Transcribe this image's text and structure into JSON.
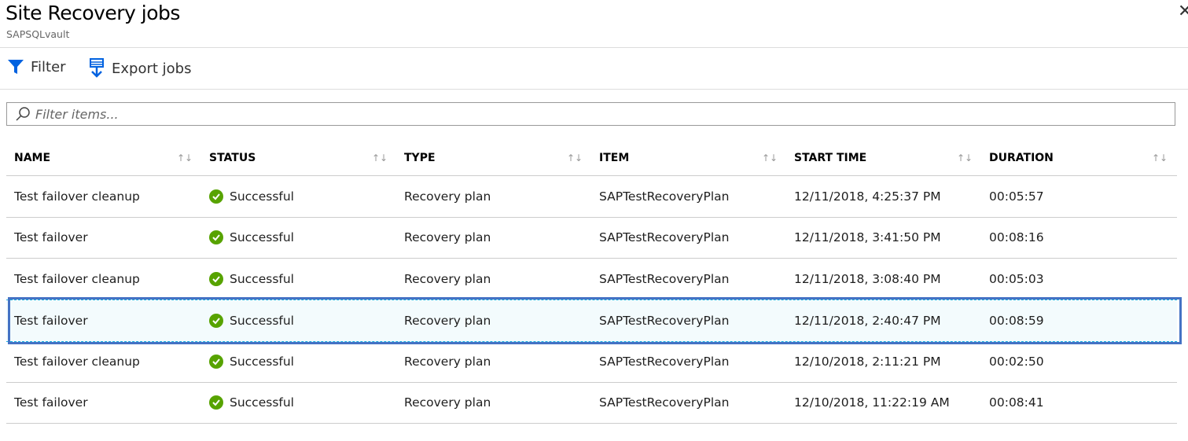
{
  "header": {
    "title": "Site Recovery jobs",
    "subtitle": "SAPSQLvault",
    "close_icon": "close-icon"
  },
  "toolbar": {
    "filter_label": "Filter",
    "export_label": "Export jobs"
  },
  "search": {
    "placeholder": "Filter items...",
    "value": ""
  },
  "colors": {
    "accent": "#0062e0",
    "success": "#57a300",
    "selection_border": "#4472c4"
  },
  "table": {
    "columns": [
      "NAME",
      "STATUS",
      "TYPE",
      "ITEM",
      "START TIME",
      "DURATION"
    ],
    "rows": [
      {
        "name": "Test failover cleanup",
        "status": "Successful",
        "type": "Recovery plan",
        "item": "SAPTestRecoveryPlan",
        "start": "12/11/2018, 4:25:37 PM",
        "duration": "00:05:57"
      },
      {
        "name": "Test failover",
        "status": "Successful",
        "type": "Recovery plan",
        "item": "SAPTestRecoveryPlan",
        "start": "12/11/2018, 3:41:50 PM",
        "duration": "00:08:16"
      },
      {
        "name": "Test failover cleanup",
        "status": "Successful",
        "type": "Recovery plan",
        "item": "SAPTestRecoveryPlan",
        "start": "12/11/2018, 3:08:40 PM",
        "duration": "00:05:03"
      },
      {
        "name": "Test failover",
        "status": "Successful",
        "type": "Recovery plan",
        "item": "SAPTestRecoveryPlan",
        "start": "12/11/2018, 2:40:47 PM",
        "duration": "00:08:59",
        "selected": true
      },
      {
        "name": "Test failover cleanup",
        "status": "Successful",
        "type": "Recovery plan",
        "item": "SAPTestRecoveryPlan",
        "start": "12/10/2018, 2:11:21 PM",
        "duration": "00:02:50"
      },
      {
        "name": "Test failover",
        "status": "Successful",
        "type": "Recovery plan",
        "item": "SAPTestRecoveryPlan",
        "start": "12/10/2018, 11:22:19 AM",
        "duration": "00:08:41"
      }
    ]
  }
}
